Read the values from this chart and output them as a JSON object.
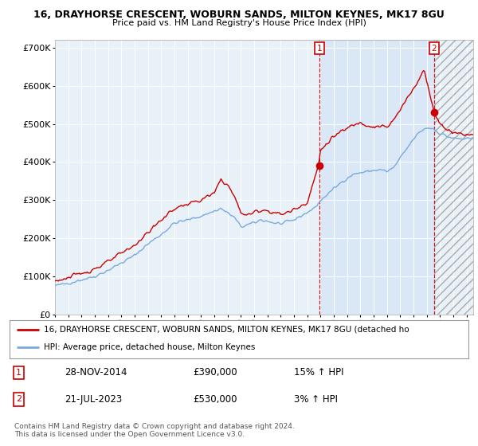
{
  "title1": "16, DRAYHORSE CRESCENT, WOBURN SANDS, MILTON KEYNES, MK17 8GU",
  "title2": "Price paid vs. HM Land Registry's House Price Index (HPI)",
  "ylabel_ticks": [
    "£0",
    "£100K",
    "£200K",
    "£300K",
    "£400K",
    "£500K",
    "£600K",
    "£700K"
  ],
  "ytick_values": [
    0,
    100000,
    200000,
    300000,
    400000,
    500000,
    600000,
    700000
  ],
  "ylim": [
    0,
    720000
  ],
  "legend_line1": "16, DRAYHORSE CRESCENT, WOBURN SANDS, MILTON KEYNES, MK17 8GU (detached ho",
  "legend_line2": "HPI: Average price, detached house, Milton Keynes",
  "annotation1_label": "1",
  "annotation1_date": "28-NOV-2014",
  "annotation1_price": "£390,000",
  "annotation1_hpi": "15% ↑ HPI",
  "annotation2_label": "2",
  "annotation2_date": "21-JUL-2023",
  "annotation2_price": "£530,000",
  "annotation2_hpi": "3% ↑ HPI",
  "footer": "Contains HM Land Registry data © Crown copyright and database right 2024.\nThis data is licensed under the Open Government Licence v3.0.",
  "sale1_x": 2014.91,
  "sale1_y": 390000,
  "sale2_x": 2023.55,
  "sale2_y": 530000,
  "vline1_x": 2014.91,
  "vline2_x": 2023.55,
  "red_color": "#cc0000",
  "blue_color": "#7aaadd",
  "shade_color": "#ddeeff",
  "background_color": "#e8f0f8",
  "xlim_start": 1995.0,
  "xlim_end": 2026.5
}
